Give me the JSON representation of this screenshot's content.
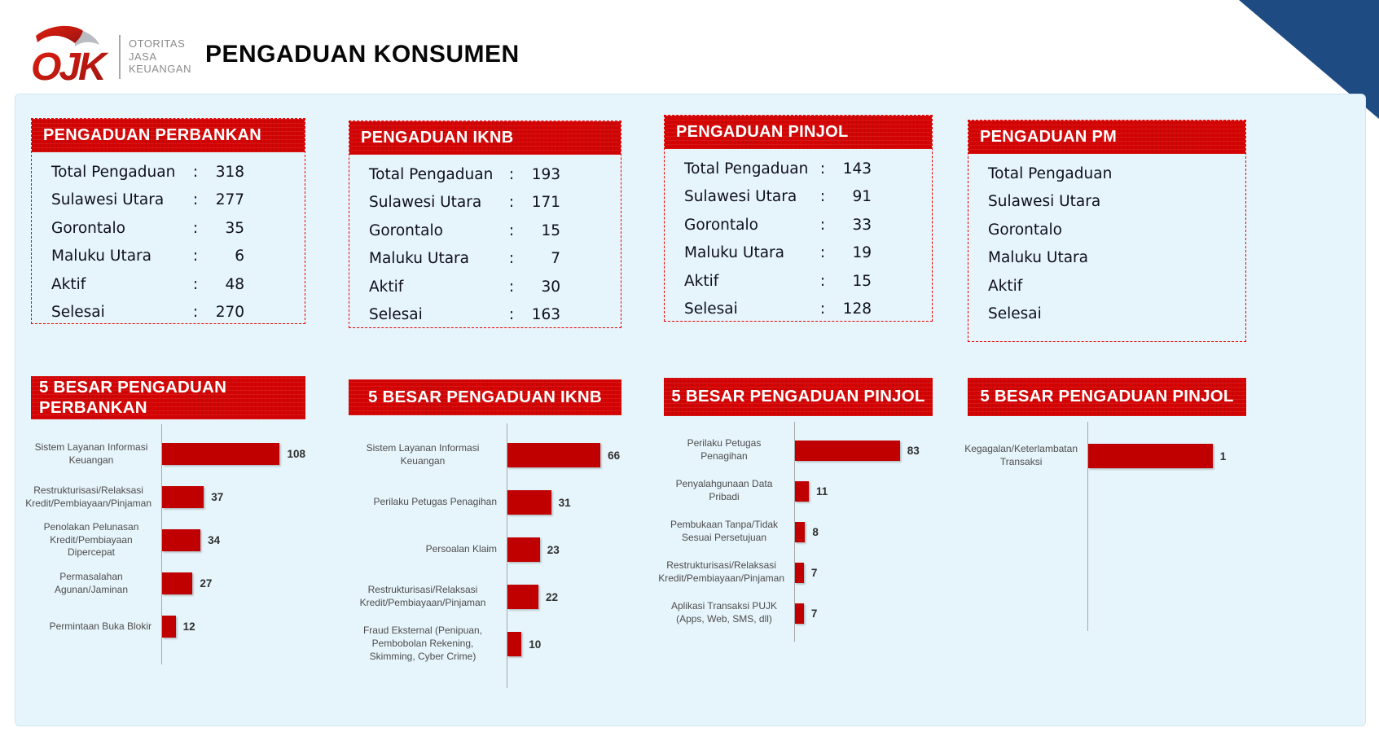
{
  "header": {
    "logo_mark": "OJK",
    "logo_text": [
      "OTORITAS",
      "JASA",
      "KEUANGAN"
    ],
    "title": "PENGADUAN KONSUMEN"
  },
  "separator": ":",
  "colors": {
    "ojk_red": "#d40404",
    "bar_red": "#c00000",
    "panel_blue": "#e6f4fb",
    "corner_navy": "#1e4b82",
    "dashed_border": "#f20000"
  },
  "summary_cards": [
    {
      "title": "PENGADUAN PERBANKAN",
      "rows": [
        {
          "label": "Total Pengaduan",
          "value": "318"
        },
        {
          "label": "Sulawesi Utara",
          "value": "277"
        },
        {
          "label": "Gorontalo",
          "value": "35"
        },
        {
          "label": "Maluku Utara",
          "value": "6"
        },
        {
          "label": "Aktif",
          "value": "48"
        },
        {
          "label": "Selesai",
          "value": "270"
        }
      ]
    },
    {
      "title": "PENGADUAN IKNB",
      "rows": [
        {
          "label": "Total Pengaduan",
          "value": "193"
        },
        {
          "label": "Sulawesi Utara",
          "value": "171"
        },
        {
          "label": "Gorontalo",
          "value": "15"
        },
        {
          "label": "Maluku Utara",
          "value": "7"
        },
        {
          "label": "Aktif",
          "value": "30"
        },
        {
          "label": "Selesai",
          "value": "163"
        }
      ]
    },
    {
      "title": "PENGADUAN PINJOL",
      "rows": [
        {
          "label": "Total Pengaduan",
          "value": "143"
        },
        {
          "label": "Sulawesi Utara",
          "value": "91"
        },
        {
          "label": "Gorontalo",
          "value": "33"
        },
        {
          "label": "Maluku Utara",
          "value": "19"
        },
        {
          "label": "Aktif",
          "value": "15"
        },
        {
          "label": "Selesai",
          "value": "128"
        }
      ]
    },
    {
      "title": "PENGADUAN PM",
      "rows": [
        {
          "label": "Total Pengaduan",
          "value": ""
        },
        {
          "label": "Sulawesi Utara",
          "value": ""
        },
        {
          "label": "Gorontalo",
          "value": ""
        },
        {
          "label": "Maluku Utara",
          "value": ""
        },
        {
          "label": "Aktif",
          "value": ""
        },
        {
          "label": "Selesai",
          "value": ""
        }
      ]
    }
  ],
  "chart_data": [
    {
      "type": "bar",
      "orientation": "horizontal",
      "title": "5 BESAR PENGADUAN PERBANKAN",
      "categories": [
        "Sistem Layanan Informasi Keuangan",
        "Restrukturisasi/Relaksasi Kredit/Pembiayaan/Pinjaman",
        "Penolakan Pelunasan Kredit/Pembiayaan Dipercepat",
        "Permasalahan Agunan/Jaminan",
        "Permintaan Buka Blokir"
      ],
      "values": [
        108,
        37,
        34,
        27,
        12
      ],
      "xlim": [
        0,
        127
      ],
      "data_labels": true,
      "grid": false,
      "legend": false
    },
    {
      "type": "bar",
      "orientation": "horizontal",
      "title": "5 BESAR PENGADUAN IKNB",
      "categories": [
        "Sistem Layanan Informasi Keuangan",
        "Perilaku Petugas Penagihan",
        "Persoalan Klaim",
        "Restrukturisasi/Relaksasi Kredit/Pembiayaan/Pinjaman",
        "Fraud Eksternal (Penipuan, Pembobolan Rekening, Skimming, Cyber Crime)"
      ],
      "values": [
        66,
        31,
        23,
        22,
        10
      ],
      "xlim": [
        0,
        81
      ],
      "data_labels": true,
      "grid": false,
      "legend": false
    },
    {
      "type": "bar",
      "orientation": "horizontal",
      "title": "5 BESAR PENGADUAN PINJOL",
      "categories": [
        "Perilaku Petugas Penagihan",
        "Penyalahgunaan Data Pribadi",
        "Pembukaan Tanpa/Tidak Sesuai Persetujuan",
        "Restrukturisasi/Relaksasi Kredit/Pembiayaan/Pinjaman",
        "Aplikasi Transaksi PUJK (Apps, Web, SMS, dll)"
      ],
      "values": [
        83,
        11,
        8,
        7,
        7
      ],
      "xlim": [
        0,
        109
      ],
      "data_labels": true,
      "grid": false,
      "legend": false
    },
    {
      "type": "bar",
      "orientation": "horizontal",
      "title": "5 BESAR PENGADUAN PINJOL",
      "categories": [
        "Kegagalan/Keterlambatan Transaksi"
      ],
      "values": [
        1
      ],
      "xlim": [
        0,
        1.27
      ],
      "data_labels": true,
      "grid": false,
      "legend": false
    }
  ]
}
